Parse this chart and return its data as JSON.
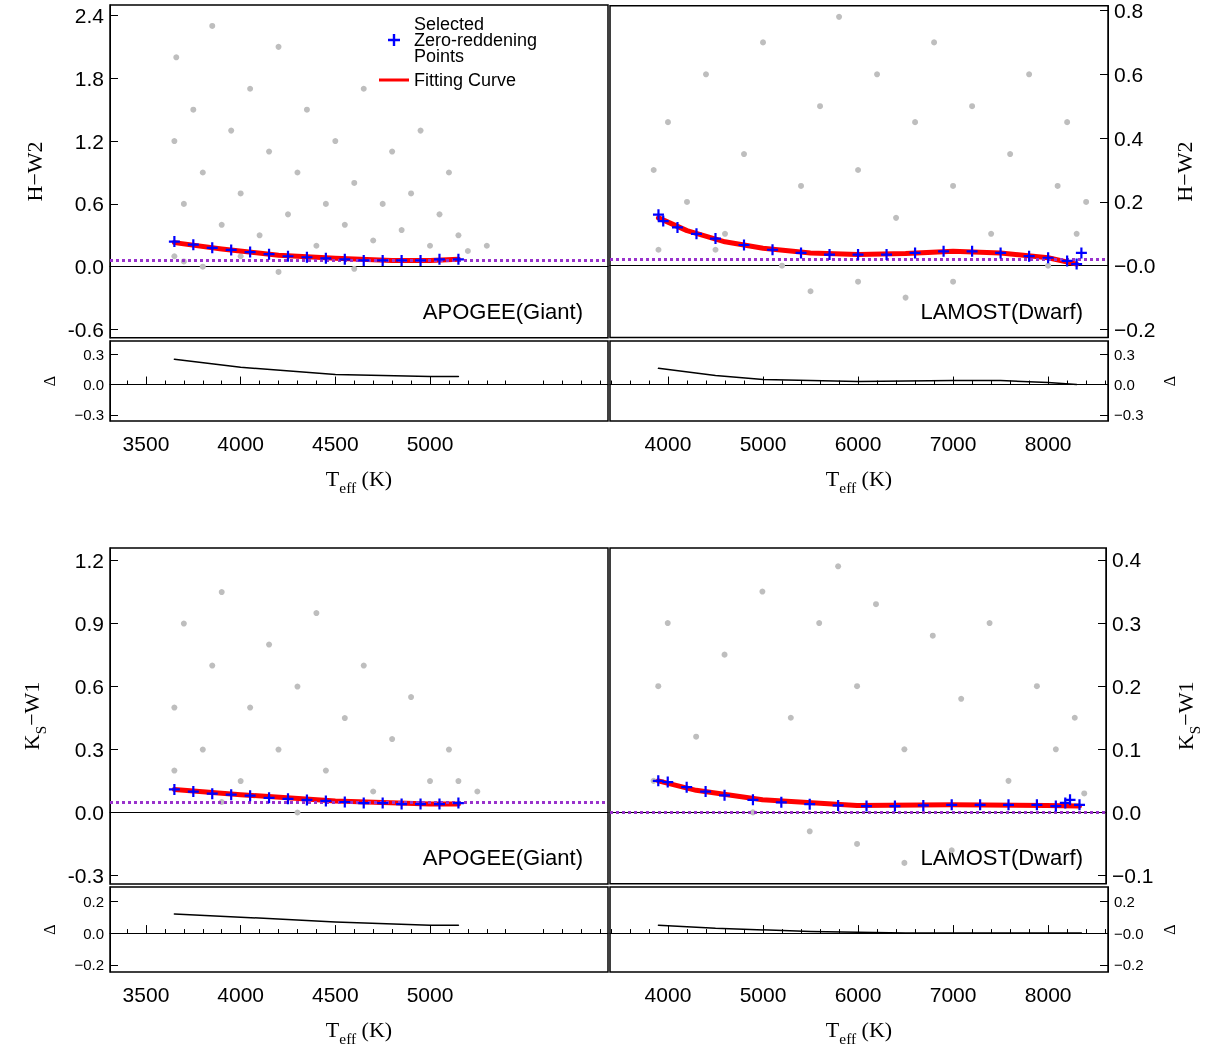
{
  "chart_data": [
    {
      "type": "scatter",
      "xlim": [
        3310,
        5940
      ],
      "ylim": [
        -0.68,
        2.5
      ],
      "yticks": [
        {
          "value": -0.6,
          "label": "-0.6"
        },
        {
          "value": 0,
          "label": "0.0"
        },
        0.6,
        1.2,
        1.8,
        2.4
      ],
      "ylabel": "H−W2",
      "tick_labels": "y",
      "legend": "top right",
      "annotations": [
        "APOGEE(Giant)"
      ],
      "series": [
        {
          "color": "#bebebe",
          "marker": "circle",
          "x": [
            3650,
            3650,
            3660,
            3700,
            3700,
            3750,
            3800,
            3850,
            3900,
            3950,
            4000,
            4000,
            4050,
            4100,
            4150,
            4200,
            4250,
            4300,
            4350,
            4400,
            4450,
            4500,
            4550,
            4600,
            4650,
            4700,
            4750,
            4800,
            4850,
            4900,
            4950,
            5000,
            5050,
            5100,
            5150,
            5200,
            5300,
            4200,
            4600,
            3800
          ],
          "values": [
            0.1,
            1.2,
            2.0,
            0.05,
            0.6,
            1.5,
            0.9,
            2.3,
            0.4,
            1.3,
            0.1,
            0.7,
            1.7,
            0.3,
            1.1,
            2.1,
            0.5,
            0.9,
            1.5,
            0.2,
            0.6,
            1.2,
            0.4,
            0.8,
            1.7,
            0.25,
            0.6,
            1.1,
            0.35,
            0.7,
            1.3,
            0.2,
            0.5,
            0.9,
            0.3,
            0.15,
            0.2,
            -0.05,
            -0.02,
            0.0
          ]
        },
        {
          "name": "Selected Zero-reddening Points",
          "color": "#0000ff",
          "marker": "cross",
          "x": [
            3650,
            3750,
            3850,
            3950,
            4050,
            4150,
            4250,
            4350,
            4450,
            4550,
            4650,
            4750,
            4850,
            4950,
            5050,
            5150
          ],
          "values": [
            0.24,
            0.21,
            0.18,
            0.16,
            0.14,
            0.12,
            0.1,
            0.09,
            0.08,
            0.07,
            0.06,
            0.06,
            0.06,
            0.06,
            0.07,
            0.07
          ]
        },
        {
          "type": "line",
          "name": "Fitting Curve",
          "color": "#ff0000",
          "line_style": "solid",
          "x": [
            3650,
            3900,
            4200,
            4500,
            4800,
            5000,
            5150
          ],
          "values": [
            0.23,
            0.17,
            0.11,
            0.08,
            0.06,
            0.06,
            0.07
          ]
        }
      ],
      "ref_lines": [
        {
          "axis": "y",
          "value": 0.06,
          "color": "#9932cc",
          "line_style": "dotted"
        }
      ]
    },
    {
      "type": "scatter",
      "xlim": [
        3390,
        8630
      ],
      "y2lim": [
        -0.225,
        0.815
      ],
      "y2ticks": [
        {
          "value": -0.2,
          "label": "−0.2"
        },
        {
          "value": 0,
          "label": "−0.0"
        },
        0.2,
        0.4,
        0.6,
        0.8
      ],
      "y2label": "H−W2",
      "tick_labels": "y",
      "annotations": [
        "LAMOST(Dwarf)"
      ],
      "series": [
        {
          "axis": "y2",
          "color": "#bebebe",
          "marker": "circle",
          "x": [
            3850,
            3900,
            4000,
            4200,
            4400,
            4600,
            4800,
            5000,
            5200,
            5400,
            5600,
            5800,
            6000,
            6000,
            6200,
            6400,
            6600,
            6800,
            7000,
            7000,
            7200,
            7400,
            7600,
            7800,
            8000,
            8100,
            8200,
            8300,
            8400,
            5500,
            6500,
            4500
          ],
          "values": [
            0.3,
            0.05,
            0.45,
            0.2,
            0.6,
            0.1,
            0.35,
            0.7,
            0.0,
            0.25,
            0.5,
            0.78,
            -0.05,
            0.3,
            0.6,
            0.15,
            0.45,
            0.7,
            -0.05,
            0.25,
            0.5,
            0.1,
            0.35,
            0.6,
            0.0,
            0.25,
            0.45,
            0.1,
            0.2,
            -0.08,
            -0.1,
            0.05
          ]
        },
        {
          "axis": "y2",
          "color": "#0000ff",
          "marker": "cross",
          "x": [
            3900,
            3950,
            4100,
            4300,
            4500,
            4800,
            5100,
            5400,
            5700,
            6000,
            6300,
            6600,
            6900,
            7200,
            7500,
            7800,
            8000,
            8200,
            8300,
            8350
          ],
          "values": [
            0.16,
            0.14,
            0.12,
            0.1,
            0.085,
            0.065,
            0.05,
            0.04,
            0.035,
            0.035,
            0.035,
            0.04,
            0.045,
            0.045,
            0.04,
            0.03,
            0.025,
            0.015,
            0.005,
            0.04
          ]
        },
        {
          "type": "line",
          "axis": "y2",
          "color": "#ff0000",
          "line_style": "solid",
          "x": [
            3900,
            4200,
            4600,
            5000,
            5500,
            6000,
            6500,
            7000,
            7500,
            8000,
            8300
          ],
          "values": [
            0.15,
            0.11,
            0.075,
            0.055,
            0.04,
            0.035,
            0.038,
            0.045,
            0.04,
            0.025,
            0.005
          ]
        }
      ],
      "ref_lines": [
        {
          "axis": "y2",
          "value": 0.02,
          "color": "#9932cc",
          "line_style": "dotted"
        }
      ]
    },
    {
      "type": "line",
      "xlim": [
        3310,
        5940
      ],
      "xticks": [
        3500,
        4000,
        4500,
        5000
      ],
      "ylim": [
        -0.36,
        0.43
      ],
      "yticks": [
        {
          "value": -0.3,
          "label": "−0.3"
        },
        {
          "value": 0,
          "label": "0.0"
        },
        0.3
      ],
      "ylabel": "Δ",
      "xlabel": "T$_{eff}$ (K)",
      "series": [
        {
          "color": "#000000",
          "x": [
            3650,
            4000,
            4500,
            5000,
            5150
          ],
          "values": [
            0.25,
            0.17,
            0.1,
            0.08,
            0.08
          ]
        }
      ]
    },
    {
      "type": "line",
      "xlim": [
        3390,
        8630
      ],
      "xticks": [
        4000,
        5000,
        6000,
        7000,
        8000
      ],
      "y2lim": [
        -0.36,
        0.43
      ],
      "y2ticks": [
        {
          "value": -0.3,
          "label": "−0.3"
        },
        {
          "value": 0,
          "label": "0.0"
        },
        0.3
      ],
      "y2label": "Δ",
      "xlabel": "T$_{eff}$ (K)",
      "series": [
        {
          "axis": "y2",
          "color": "#000000",
          "x": [
            3900,
            4500,
            5000,
            6000,
            7000,
            7500,
            8000,
            8300
          ],
          "values": [
            0.16,
            0.09,
            0.05,
            0.03,
            0.04,
            0.04,
            0.02,
            0.0
          ]
        }
      ]
    },
    {
      "type": "scatter",
      "xlim": [
        3310,
        5940
      ],
      "ylim": [
        -0.34,
        1.26
      ],
      "yticks": [
        {
          "value": -0.3,
          "label": "-0.3"
        },
        {
          "value": 0,
          "label": "0.0"
        },
        0.3,
        0.6,
        0.9,
        1.2
      ],
      "ylabel": "K$_{S}$−W1",
      "tick_labels": "y",
      "annotations": [
        "APOGEE(Giant)"
      ],
      "series": [
        {
          "color": "#bebebe",
          "marker": "circle",
          "x": [
            3650,
            3650,
            3700,
            3800,
            3850,
            3900,
            4000,
            4050,
            4150,
            4200,
            4300,
            4400,
            4450,
            4550,
            4650,
            4700,
            4800,
            4900,
            5000,
            5100,
            5150,
            5250,
            4300,
            3900
          ],
          "values": [
            0.2,
            0.5,
            0.9,
            0.3,
            0.7,
            1.05,
            0.15,
            0.5,
            0.8,
            0.3,
            0.6,
            0.95,
            0.2,
            0.45,
            0.7,
            0.1,
            0.35,
            0.55,
            0.15,
            0.3,
            0.15,
            0.1,
            0.0,
            0.05
          ]
        },
        {
          "color": "#0000ff",
          "marker": "cross",
          "x": [
            3650,
            3750,
            3850,
            3950,
            4050,
            4150,
            4250,
            4350,
            4450,
            4550,
            4650,
            4750,
            4850,
            4950,
            5050,
            5150
          ],
          "values": [
            0.11,
            0.1,
            0.09,
            0.085,
            0.08,
            0.07,
            0.065,
            0.06,
            0.055,
            0.05,
            0.045,
            0.045,
            0.04,
            0.04,
            0.04,
            0.045
          ]
        },
        {
          "type": "line",
          "color": "#ff0000",
          "line_style": "solid",
          "x": [
            3650,
            4000,
            4500,
            5000,
            5150
          ],
          "values": [
            0.11,
            0.085,
            0.055,
            0.04,
            0.04
          ]
        }
      ],
      "ref_lines": [
        {
          "axis": "y",
          "value": 0.05,
          "color": "#9932cc",
          "line_style": "dotted"
        }
      ]
    },
    {
      "type": "scatter",
      "xlim": [
        3390,
        8630
      ],
      "y2lim": [
        -0.113,
        0.419
      ],
      "y2ticks": [
        {
          "value": -0.1,
          "label": "−0.1"
        },
        {
          "value": 0,
          "label": "0.0"
        },
        0.1,
        0.2,
        0.3,
        0.4
      ],
      "y2label": "K$_{S}$−W1",
      "tick_labels": "y",
      "annotations": [
        "LAMOST(Dwarf)"
      ],
      "series": [
        {
          "axis": "y2",
          "color": "#bebebe",
          "marker": "circle",
          "x": [
            3850,
            3900,
            4000,
            4300,
            4600,
            4900,
            5000,
            5300,
            5600,
            5800,
            6000,
            6000,
            6200,
            6500,
            6800,
            7000,
            7100,
            7400,
            7600,
            7900,
            8100,
            8300,
            8400,
            5500,
            6500
          ],
          "values": [
            0.05,
            0.2,
            0.3,
            0.12,
            0.25,
            0.0,
            0.35,
            0.15,
            0.3,
            0.39,
            -0.05,
            0.2,
            0.33,
            0.1,
            0.28,
            -0.06,
            0.18,
            0.3,
            0.05,
            0.2,
            0.1,
            0.15,
            0.03,
            -0.03,
            -0.08
          ]
        },
        {
          "axis": "y2",
          "color": "#0000ff",
          "marker": "cross",
          "x": [
            3900,
            4000,
            4200,
            4400,
            4600,
            4900,
            5200,
            5500,
            5800,
            6100,
            6400,
            6700,
            7000,
            7300,
            7600,
            7900,
            8100,
            8200,
            8250,
            8350
          ],
          "values": [
            0.05,
            0.048,
            0.04,
            0.033,
            0.027,
            0.02,
            0.016,
            0.013,
            0.011,
            0.01,
            0.01,
            0.011,
            0.012,
            0.012,
            0.012,
            0.012,
            0.01,
            0.015,
            0.02,
            0.012
          ]
        },
        {
          "type": "line",
          "axis": "y2",
          "color": "#ff0000",
          "line_style": "solid",
          "x": [
            3900,
            4300,
            5000,
            6000,
            7000,
            8000,
            8350
          ],
          "values": [
            0.05,
            0.035,
            0.02,
            0.011,
            0.012,
            0.011,
            0.01
          ]
        }
      ],
      "ref_lines": [
        {
          "axis": "y2",
          "value": 0.0,
          "color": "#9932cc",
          "line_style": "dotted"
        }
      ]
    },
    {
      "type": "line",
      "xlim": [
        3310,
        5940
      ],
      "xticks": [
        3500,
        4000,
        4500,
        5000
      ],
      "ylim": [
        -0.245,
        0.29
      ],
      "yticks": [
        {
          "value": -0.2,
          "label": "−0.2"
        },
        {
          "value": 0,
          "label": "0.0"
        },
        0.2
      ],
      "ylabel": "Δ",
      "xlabel": "T$_{eff}$ (K)",
      "series": [
        {
          "color": "#000000",
          "x": [
            3650,
            4000,
            4500,
            5000,
            5150
          ],
          "values": [
            0.12,
            0.1,
            0.07,
            0.05,
            0.05
          ]
        }
      ]
    },
    {
      "type": "line",
      "xlim": [
        3390,
        8630
      ],
      "xticks": [
        4000,
        5000,
        6000,
        7000,
        8000
      ],
      "y2lim": [
        -0.245,
        0.29
      ],
      "y2ticks": [
        {
          "value": -0.2,
          "label": "−0.2"
        },
        {
          "value": 0,
          "label": "−0.0"
        },
        0.2
      ],
      "y2label": "Δ",
      "xlabel": "T$_{eff}$ (K)",
      "series": [
        {
          "axis": "y2",
          "color": "#000000",
          "x": [
            3900,
            4500,
            5500,
            6500,
            8350
          ],
          "values": [
            0.05,
            0.03,
            0.01,
            0.0,
            0.0
          ]
        }
      ]
    }
  ]
}
